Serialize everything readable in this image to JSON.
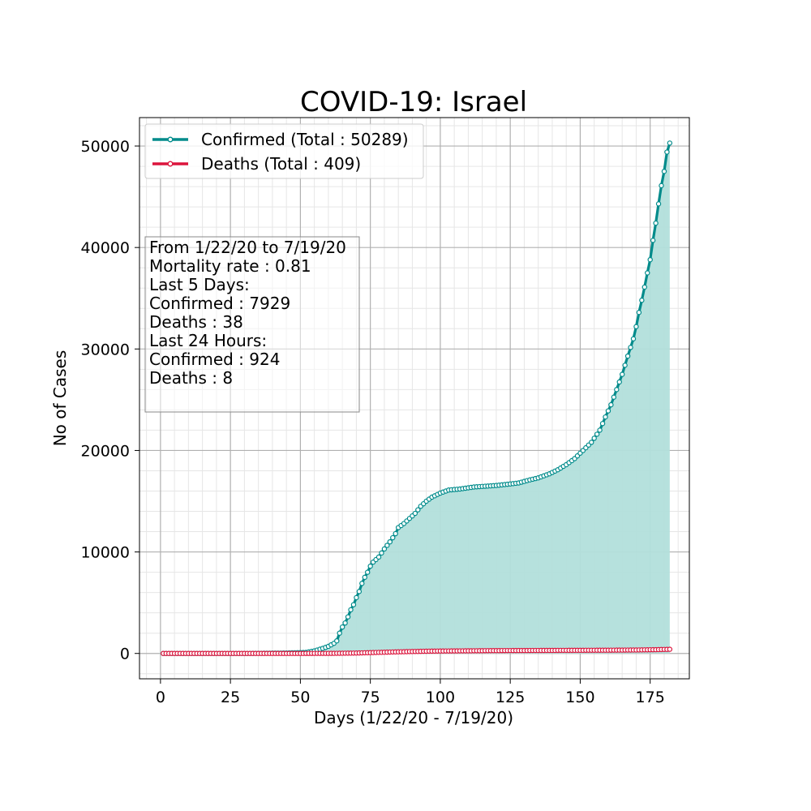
{
  "chart_data": {
    "type": "line",
    "title": "COVID-19: Israel",
    "xlabel": "Days (1/22/20 - 7/19/20)",
    "ylabel": "No of Cases",
    "xlim": [
      -7.5,
      189
    ],
    "ylim": [
      -2500,
      52800
    ],
    "xticks": [
      0,
      25,
      50,
      75,
      100,
      125,
      150,
      175
    ],
    "yticks": [
      0,
      10000,
      20000,
      30000,
      40000,
      50000
    ],
    "grid": true,
    "minor_grid": true,
    "legend_position": "upper left",
    "series": [
      {
        "name": "Confirmed (Total : 50289)",
        "color": "#008b8b",
        "fill": "#b2dfdb",
        "marker": "circle-open",
        "key_points": [
          [
            1,
            0
          ],
          [
            30,
            0
          ],
          [
            45,
            40
          ],
          [
            52,
            100
          ],
          [
            55,
            250
          ],
          [
            58,
            500
          ],
          [
            60,
            700
          ],
          [
            62,
            1000
          ],
          [
            63,
            1240
          ],
          [
            64,
            2000
          ],
          [
            65,
            2600
          ],
          [
            66,
            3000
          ],
          [
            67,
            3600
          ],
          [
            68,
            4300
          ],
          [
            69,
            4800
          ],
          [
            70,
            5500
          ],
          [
            71,
            6100
          ],
          [
            72,
            6900
          ],
          [
            73,
            7500
          ],
          [
            74,
            8000
          ],
          [
            75,
            8600
          ],
          [
            76,
            9000
          ],
          [
            78,
            9500
          ],
          [
            80,
            10300
          ],
          [
            82,
            11000
          ],
          [
            84,
            11800
          ],
          [
            85,
            12400
          ],
          [
            87,
            12800
          ],
          [
            89,
            13300
          ],
          [
            91,
            13800
          ],
          [
            93,
            14500
          ],
          [
            95,
            15000
          ],
          [
            97,
            15400
          ],
          [
            100,
            15800
          ],
          [
            103,
            16100
          ],
          [
            107,
            16200
          ],
          [
            112,
            16400
          ],
          [
            120,
            16550
          ],
          [
            125,
            16700
          ],
          [
            128,
            16800
          ],
          [
            132,
            17100
          ],
          [
            135,
            17300
          ],
          [
            139,
            17700
          ],
          [
            142,
            18100
          ],
          [
            145,
            18600
          ],
          [
            148,
            19200
          ],
          [
            151,
            20000
          ],
          [
            154,
            20800
          ],
          [
            157,
            22000
          ],
          [
            159,
            23300
          ],
          [
            161,
            24500
          ],
          [
            163,
            26000
          ],
          [
            165,
            27500
          ],
          [
            167,
            29300
          ],
          [
            169,
            31000
          ],
          [
            170,
            32200
          ],
          [
            171,
            33600
          ],
          [
            172,
            34800
          ],
          [
            173,
            36100
          ],
          [
            174,
            37500
          ],
          [
            175,
            38800
          ],
          [
            176,
            40700
          ],
          [
            177,
            42400
          ],
          [
            178,
            44300
          ],
          [
            179,
            46100
          ],
          [
            180,
            47500
          ],
          [
            181,
            49400
          ],
          [
            182,
            50289
          ]
        ]
      },
      {
        "name": "Deaths (Total : 409)",
        "color": "#dc143c",
        "marker": "circle-open",
        "key_points": [
          [
            1,
            0
          ],
          [
            45,
            0
          ],
          [
            60,
            5
          ],
          [
            65,
            20
          ],
          [
            70,
            40
          ],
          [
            75,
            80
          ],
          [
            80,
            120
          ],
          [
            85,
            160
          ],
          [
            90,
            190
          ],
          [
            95,
            220
          ],
          [
            100,
            240
          ],
          [
            110,
            260
          ],
          [
            120,
            280
          ],
          [
            140,
            300
          ],
          [
            160,
            320
          ],
          [
            170,
            340
          ],
          [
            177,
            371
          ],
          [
            182,
            409
          ]
        ]
      }
    ]
  },
  "info_box": {
    "lines": [
      "From 1/22/20 to 7/19/20",
      "Mortality rate : 0.81",
      "Last 5 Days:",
      "Confirmed : 7929",
      "Deaths : 38",
      "Last 24 Hours:",
      "Confirmed : 924",
      "Deaths : 8"
    ]
  }
}
